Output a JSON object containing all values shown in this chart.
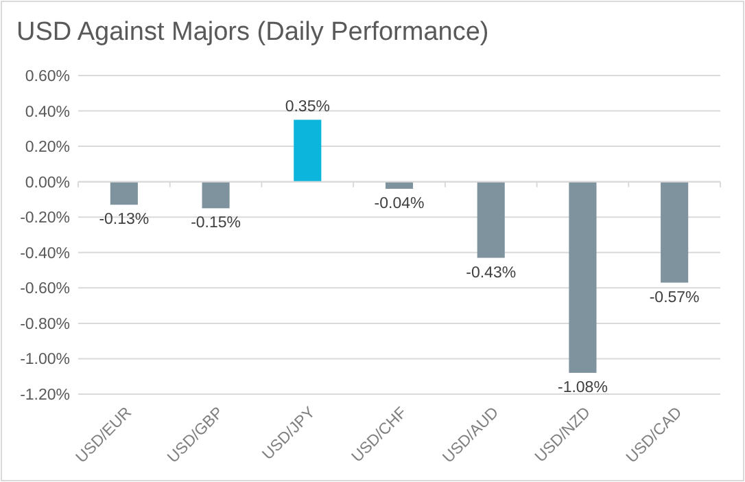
{
  "chart_data": {
    "type": "bar",
    "title": "USD Against Majors (Daily Performance)",
    "categories": [
      "USD/EUR",
      "USD/GBP",
      "USD/JPY",
      "USD/CHF",
      "USD/AUD",
      "USD/NZD",
      "USD/CAD"
    ],
    "values": [
      -0.13,
      -0.15,
      0.35,
      -0.04,
      -0.43,
      -1.08,
      -0.57
    ],
    "colors": [
      "#7f939e",
      "#7f939e",
      "#0bb5dc",
      "#7f939e",
      "#7f939e",
      "#7f939e",
      "#7f939e"
    ],
    "value_labels": [
      "-0.13%",
      "-0.15%",
      "0.35%",
      "-0.04%",
      "-0.43%",
      "-1.08%",
      "-0.57%"
    ],
    "ylim": [
      -1.2,
      0.6
    ],
    "yticks": [
      {
        "value": -1.2,
        "label": "-1.20%"
      },
      {
        "value": -1.0,
        "label": "-1.00%"
      },
      {
        "value": -0.8,
        "label": "-0.80%"
      },
      {
        "value": -0.6,
        "label": "-0.60%"
      },
      {
        "value": -0.4,
        "label": "-0.40%"
      },
      {
        "value": -0.2,
        "label": "-0.20%"
      },
      {
        "value": 0,
        "label": "0.00%"
      },
      {
        "value": 0.2,
        "label": "0.20%"
      },
      {
        "value": 0.4,
        "label": "0.40%"
      },
      {
        "value": 0.6,
        "label": "0.60%"
      }
    ],
    "grid": "y"
  }
}
